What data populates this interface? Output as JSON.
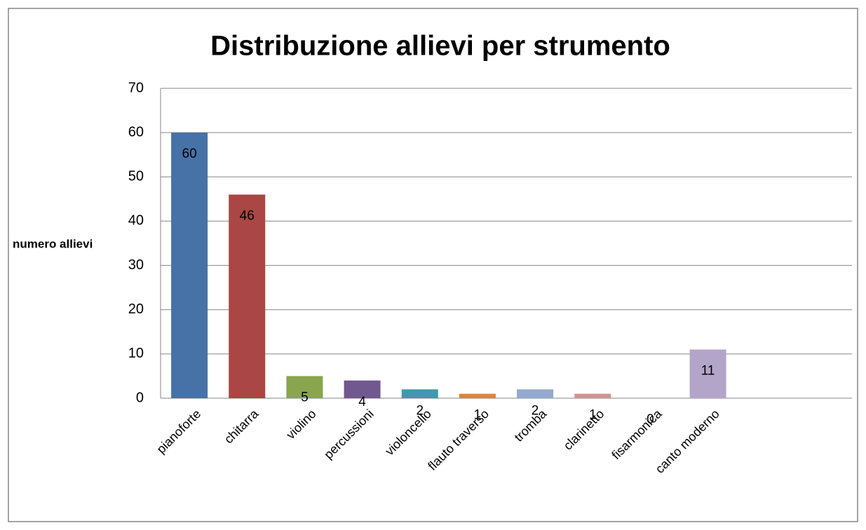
{
  "chart_data": {
    "type": "bar",
    "title": "Distribuzione allievi per strumento",
    "y_label": "numero allievi",
    "categories": [
      "pianoforte",
      "chitarra",
      "violino",
      "percussioni",
      "violoncello",
      "flauto traverso",
      "tromba",
      "clarinetto",
      "fisarmonica",
      "canto moderno",
      null,
      null
    ],
    "values": [
      60,
      46,
      5,
      4,
      2,
      1,
      2,
      1,
      0,
      11,
      null,
      null
    ],
    "colors": [
      "#4672a8",
      "#aa4644",
      "#89a54e",
      "#71588f",
      "#4198af",
      "#db843d",
      "#93a9cf",
      "#d19392",
      "#a99bbd",
      "#b3a5c9",
      null,
      null
    ],
    "ylim": [
      0,
      70
    ],
    "yticks": [
      0,
      10,
      20,
      30,
      40,
      50,
      60,
      70
    ],
    "grid": true
  }
}
